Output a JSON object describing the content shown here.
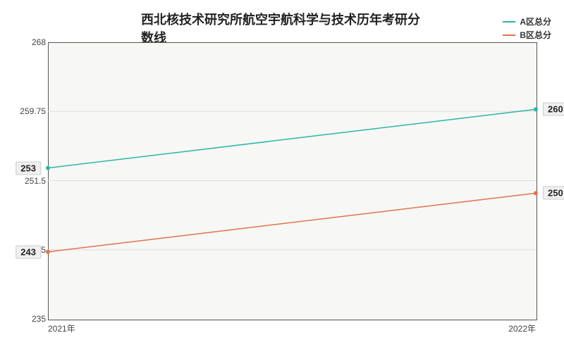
{
  "chart": {
    "type": "line",
    "title": "西北核技术研究所航空宇航科学与技术历年考研分数线",
    "title_fontsize": 18,
    "title_color": "#222222",
    "plot_background": "#f7f7f5",
    "plot_border_color": "#555555",
    "page_background": "#ffffff",
    "x": {
      "categories": [
        "2021年",
        "2022年"
      ],
      "label_fontsize": 12,
      "label_color": "#444444"
    },
    "y": {
      "min": 235,
      "max": 268,
      "ticks": [
        235,
        243.25,
        251.5,
        259.75,
        268
      ],
      "label_fontsize": 12,
      "label_color": "#444444",
      "grid_color": "#dddddd"
    },
    "series": [
      {
        "name": "A区总分",
        "color": "#2bb6a3",
        "line_width": 1.5,
        "values": [
          253,
          260
        ]
      },
      {
        "name": "B区总分",
        "color": "#e2734b",
        "line_width": 1.5,
        "values": [
          243,
          250
        ]
      }
    ],
    "legend": {
      "fontsize": 12,
      "text_color": "#333333"
    },
    "callout": {
      "fontsize": 13,
      "bg": "#f0f0f0",
      "border": "#cccccc",
      "text_color": "#222222"
    }
  }
}
